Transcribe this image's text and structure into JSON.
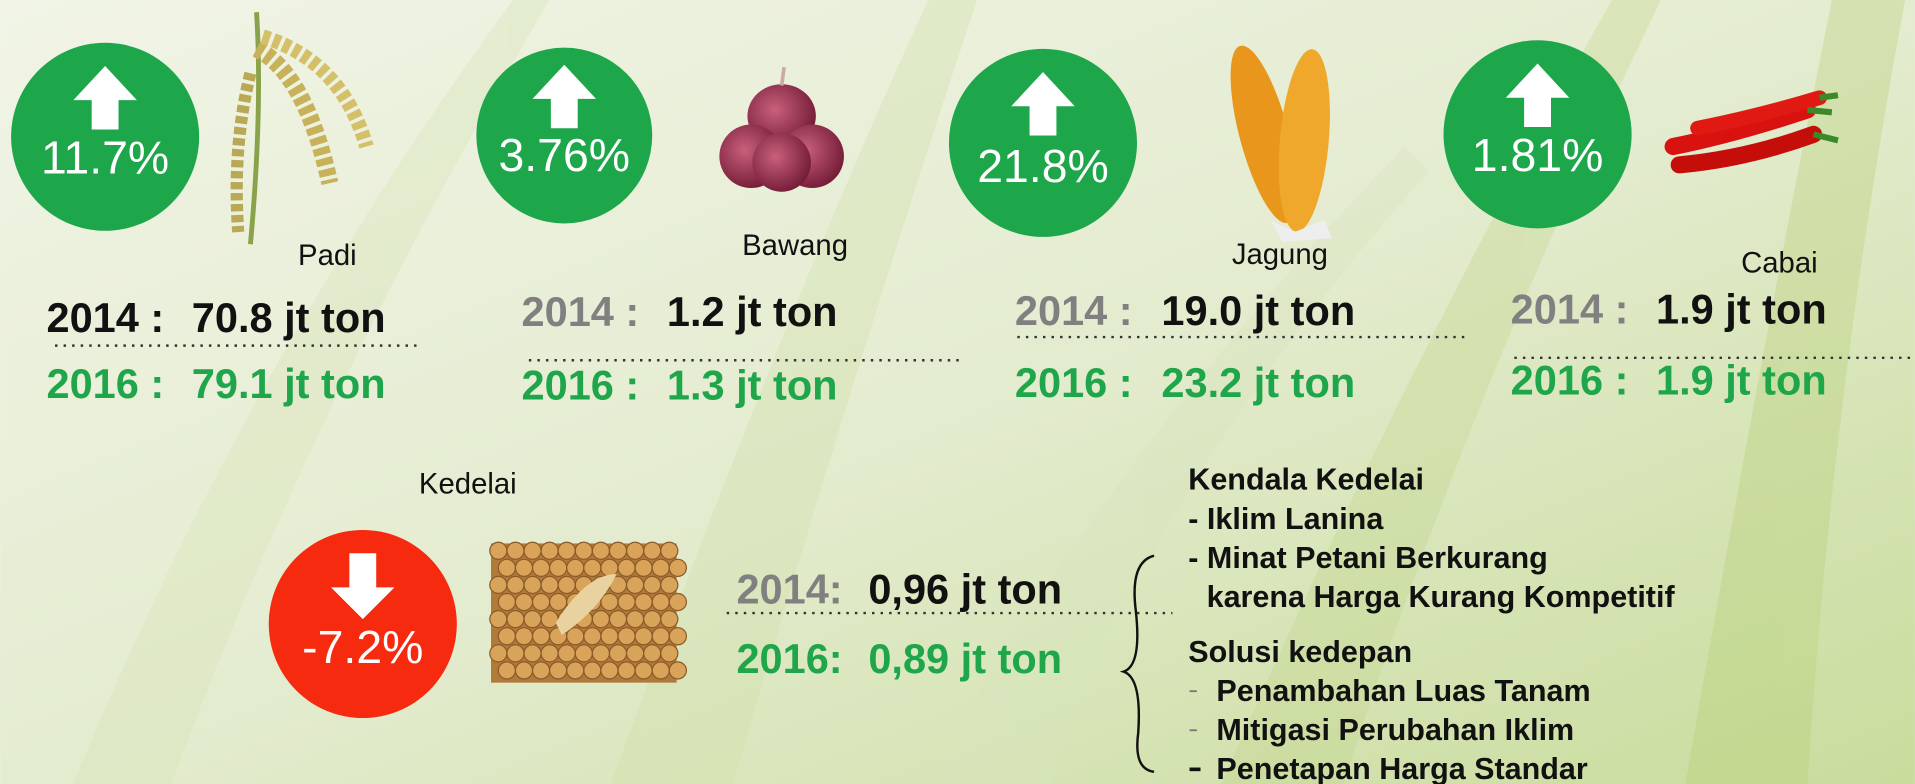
{
  "commodities": [
    {
      "name": "Padi",
      "change": "11.7%",
      "year_2014": "2014 :",
      "value_2014": "70.8 jt ton",
      "year_2016": "2016 :",
      "value_2016": "79.1 jt ton"
    },
    {
      "name": "Bawang",
      "change": "3.76%",
      "year_2014": "2014 :",
      "value_2014": "1.2 jt  ton",
      "year_2016": "2016 :",
      "value_2016": "1.3 jt  ton"
    },
    {
      "name": "Jagung",
      "change": "21.8%",
      "year_2014": "2014 :",
      "value_2014": "19.0 jt  ton",
      "year_2016": "2016 :",
      "value_2016": "23.2 jt  ton"
    },
    {
      "name": "Cabai",
      "change": "1.81%",
      "year_2014": "2014 :",
      "value_2014": "1.9 jt  ton",
      "year_2016": "2016 :",
      "value_2016": "1.9 jt  ton"
    },
    {
      "name": "Kedelai",
      "change": "-7.2%",
      "year_2014": "2014:",
      "value_2014": "0,96  jt ton",
      "year_2016": "2016:",
      "value_2016": "0,89 jt ton"
    }
  ],
  "constraints": {
    "title": "Kendala Kedelai",
    "items": [
      "- Iklim Lanina",
      "- Minat Petani Berkurang",
      "karena Harga Kurang Kompetitif"
    ]
  },
  "solutions": {
    "title": "Solusi kedepan",
    "items": [
      "Penambahan Luas Tanam",
      "Mitigasi Perubahan Iklim",
      "Penetapan Harga Standar"
    ]
  }
}
